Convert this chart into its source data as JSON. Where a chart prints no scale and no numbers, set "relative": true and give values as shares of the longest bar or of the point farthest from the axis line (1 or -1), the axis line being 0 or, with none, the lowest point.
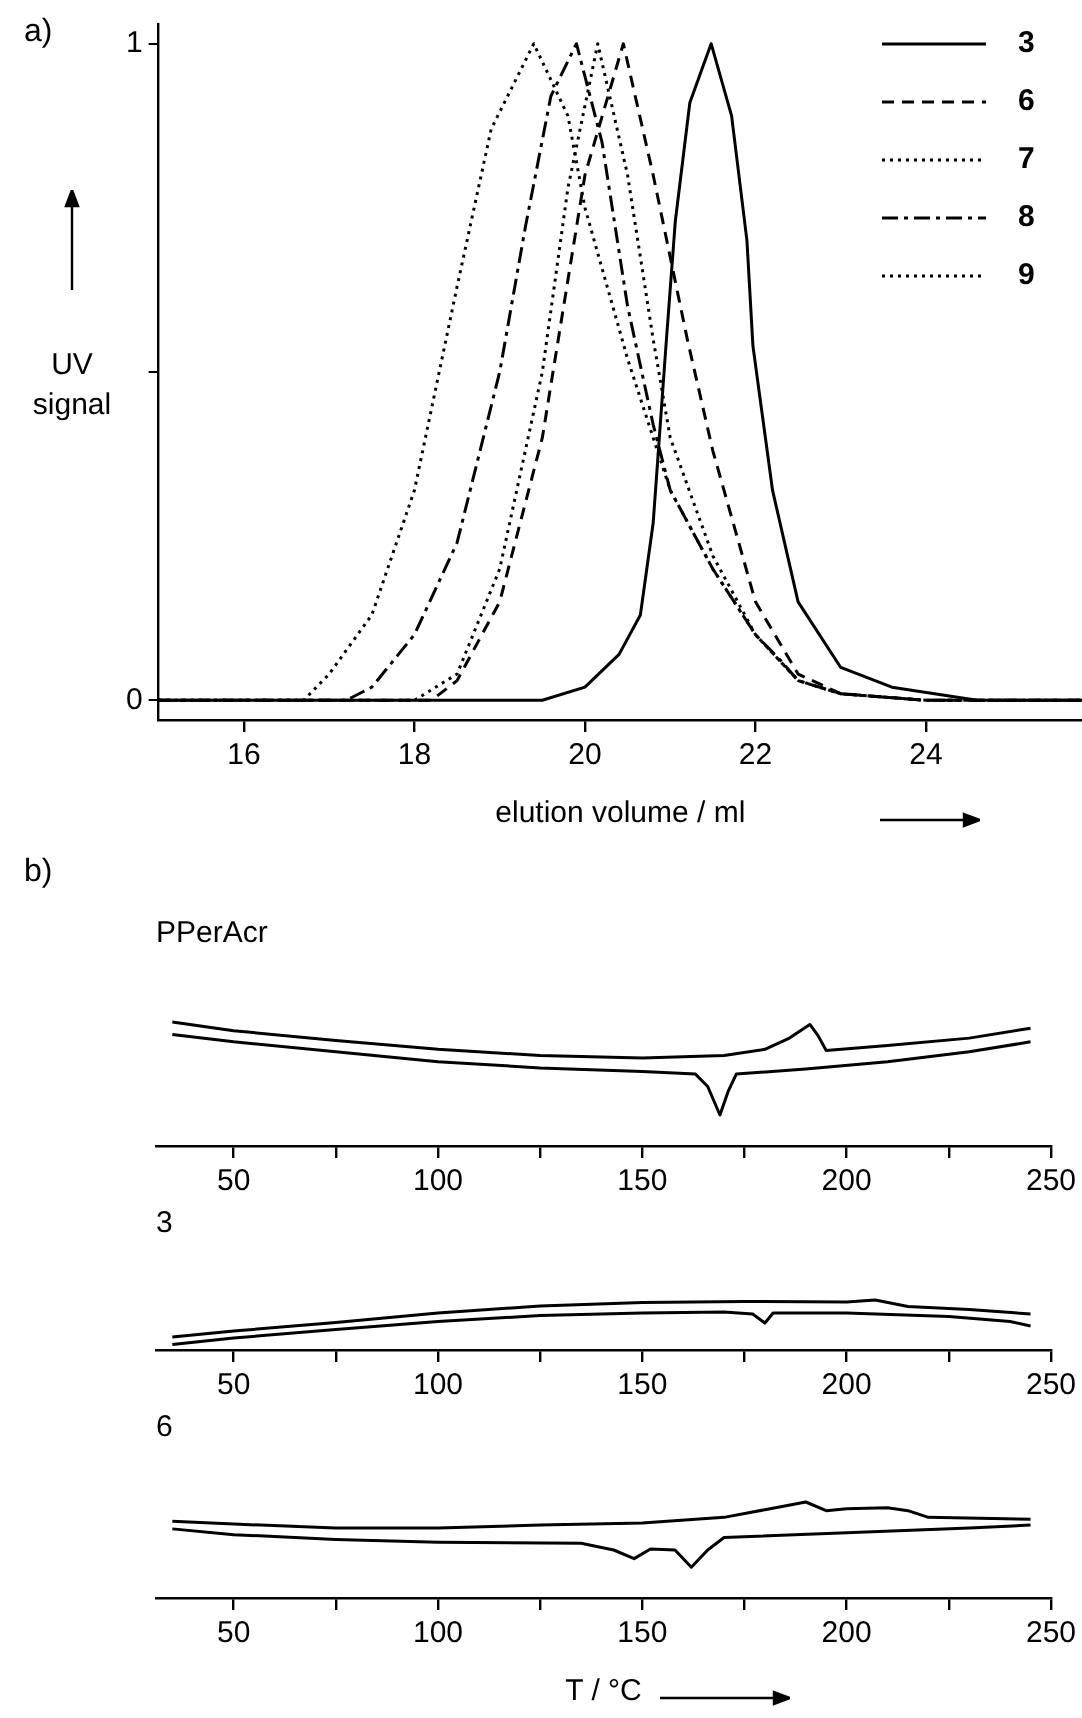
{
  "chart_data": [
    {
      "type": "line",
      "xlabel": "elution volume / ml",
      "ylabel": "UV signal",
      "annotations": [
        "a)"
      ],
      "xlim": [
        15,
        25.83
      ],
      "xticks": [
        16,
        18,
        20,
        22,
        24
      ],
      "ylim": [
        -0.03,
        1.03
      ],
      "yticks": [
        0,
        {
          "value": 0.5,
          "label": null
        },
        1
      ],
      "grid": false,
      "legend": "top right",
      "marker": "none",
      "series": [
        {
          "name": "3",
          "color": "#000000",
          "line_style": "solid",
          "x": [
            15,
            19.5,
            20,
            20.4,
            20.65,
            20.8,
            20.95,
            21.06,
            21.23,
            21.48,
            21.72,
            21.9,
            21.97,
            22.2,
            22.5,
            23,
            23.6,
            24.6,
            25.83
          ],
          "values": [
            0,
            0,
            0.02,
            0.07,
            0.13,
            0.27,
            0.54,
            0.73,
            0.91,
            1,
            0.89,
            0.7,
            0.54,
            0.32,
            0.15,
            0.05,
            0.02,
            0,
            0
          ]
        },
        {
          "name": "6",
          "color": "#000000",
          "line_style": "dashed",
          "x": [
            15,
            18.2,
            18.5,
            19,
            19.5,
            20,
            20.45,
            20.8,
            21.2,
            21.5,
            22,
            22.5,
            23,
            24,
            25.83
          ],
          "values": [
            0,
            0,
            0.03,
            0.15,
            0.4,
            0.8,
            1,
            0.8,
            0.55,
            0.38,
            0.15,
            0.04,
            0.01,
            0,
            0
          ]
        },
        {
          "name": "7",
          "color": "#000000",
          "line_style": "dotted",
          "x": [
            15,
            18,
            18.5,
            19,
            19.5,
            19.8,
            20.15,
            20.5,
            20.8,
            21,
            21.5,
            22,
            22.5,
            23,
            24,
            25.83
          ],
          "values": [
            0,
            0,
            0.04,
            0.2,
            0.5,
            0.78,
            1,
            0.8,
            0.55,
            0.4,
            0.22,
            0.1,
            0.03,
            0.01,
            0,
            0
          ]
        },
        {
          "name": "8",
          "color": "#000000",
          "line_style": "dashdot",
          "x": [
            15,
            17.2,
            17.5,
            18,
            18.5,
            19,
            19.3,
            19.6,
            19.9,
            20.2,
            20.5,
            20.8,
            21,
            21.5,
            22,
            22.3,
            22.5,
            23,
            24,
            25.83
          ],
          "values": [
            0,
            0,
            0.02,
            0.1,
            0.24,
            0.5,
            0.72,
            0.92,
            1,
            0.85,
            0.6,
            0.42,
            0.32,
            0.2,
            0.1,
            0.06,
            0.03,
            0.01,
            0,
            0
          ]
        },
        {
          "name": "9",
          "color": "#000000",
          "line_style": "dotted",
          "x": [
            15,
            16.7,
            17,
            17.5,
            18,
            18.5,
            18.9,
            19.4,
            19.8,
            20,
            20.5,
            21,
            21.5,
            22,
            22.5,
            23,
            24,
            25.83
          ],
          "values": [
            0,
            0,
            0.04,
            0.13,
            0.32,
            0.63,
            0.87,
            1,
            0.89,
            0.75,
            0.52,
            0.32,
            0.2,
            0.1,
            0.03,
            0.01,
            0,
            0
          ]
        }
      ]
    },
    {
      "type": "line",
      "relative": true,
      "title": "PPerAcr",
      "annotations": [
        "b)"
      ],
      "xlim": [
        31,
        250
      ],
      "xticks": [
        50,
        {
          "value": 75,
          "label": null
        },
        100,
        {
          "value": 125,
          "label": null
        },
        150,
        {
          "value": 175,
          "label": null
        },
        200,
        {
          "value": 225,
          "label": null
        },
        250
      ],
      "tick_labels": "x",
      "grid": false,
      "marker": "none",
      "line_style": "solid",
      "series": [
        {
          "color": "#000000",
          "x": [
            35,
            50,
            75,
            100,
            125,
            150,
            170,
            180,
            186,
            191,
            193,
            195,
            210,
            230,
            245
          ],
          "values": [
            1,
            0.93,
            0.85,
            0.78,
            0.73,
            0.71,
            0.73,
            0.78,
            0.87,
            0.98,
            0.89,
            0.77,
            0.81,
            0.87,
            0.95
          ]
        },
        {
          "color": "#000000",
          "x": [
            35,
            50,
            75,
            100,
            125,
            150,
            163,
            166,
            169,
            171,
            173,
            190,
            210,
            230,
            245
          ],
          "values": [
            0.9,
            0.84,
            0.76,
            0.68,
            0.63,
            0.6,
            0.58,
            0.48,
            0.25,
            0.44,
            0.58,
            0.62,
            0.68,
            0.76,
            0.84
          ]
        }
      ]
    },
    {
      "type": "line",
      "relative": true,
      "title": "3",
      "xlim": [
        31,
        250
      ],
      "xticks": [
        50,
        {
          "value": 75,
          "label": null
        },
        100,
        {
          "value": 125,
          "label": null
        },
        150,
        {
          "value": 175,
          "label": null
        },
        200,
        {
          "value": 225,
          "label": null
        },
        250
      ],
      "tick_labels": "x",
      "grid": false,
      "marker": "none",
      "line_style": "solid",
      "series": [
        {
          "color": "#000000",
          "x": [
            35,
            50,
            75,
            100,
            125,
            150,
            175,
            200,
            207,
            215,
            230,
            245
          ],
          "values": [
            0.26,
            0.38,
            0.55,
            0.74,
            0.88,
            0.95,
            0.97,
            0.96,
            1,
            0.87,
            0.81,
            0.72
          ]
        },
        {
          "color": "#000000",
          "x": [
            35,
            50,
            75,
            100,
            125,
            150,
            170,
            177,
            180,
            182,
            200,
            225,
            240,
            245
          ],
          "values": [
            0.11,
            0.24,
            0.41,
            0.57,
            0.69,
            0.74,
            0.76,
            0.72,
            0.54,
            0.74,
            0.74,
            0.67,
            0.57,
            0.48
          ]
        }
      ]
    },
    {
      "type": "line",
      "relative": true,
      "title": "6",
      "xlabel": "T / °C",
      "xlim": [
        31,
        250
      ],
      "xticks": [
        50,
        {
          "value": 75,
          "label": null
        },
        100,
        {
          "value": 125,
          "label": null
        },
        150,
        {
          "value": 175,
          "label": null
        },
        200,
        {
          "value": 225,
          "label": null
        },
        250
      ],
      "tick_labels": "x",
      "grid": false,
      "marker": "none",
      "line_style": "solid",
      "series": [
        {
          "color": "#000000",
          "x": [
            35,
            50,
            75,
            100,
            125,
            150,
            170,
            180,
            190,
            195,
            200,
            210,
            215,
            220,
            245
          ],
          "values": [
            0.8,
            0.77,
            0.73,
            0.73,
            0.76,
            0.78,
            0.84,
            0.92,
            1,
            0.91,
            0.93,
            0.94,
            0.91,
            0.84,
            0.82
          ]
        },
        {
          "color": "#000000",
          "x": [
            35,
            50,
            75,
            100,
            135,
            143,
            148,
            152,
            158,
            162,
            166,
            170,
            200,
            230,
            245
          ],
          "values": [
            0.72,
            0.66,
            0.61,
            0.58,
            0.57,
            0.5,
            0.41,
            0.51,
            0.5,
            0.32,
            0.5,
            0.63,
            0.68,
            0.73,
            0.76
          ]
        }
      ]
    }
  ]
}
